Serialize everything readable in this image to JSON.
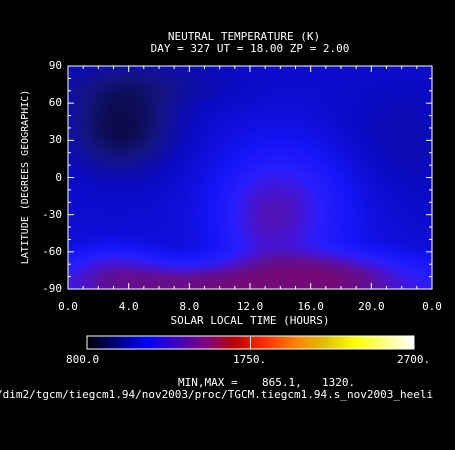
{
  "chart_data": {
    "type": "heatmap",
    "title": "NEUTRAL TEMPERATURE (K)",
    "subtitle": "DAY = 327  UT = 18.00  ZP =    2.00",
    "xlabel": "SOLAR LOCAL TIME (HOURS)",
    "ylabel": "LATITUDE (DEGREES GEOGRAPHIC)",
    "x_ticks": [
      "0.0",
      "4.0",
      "8.0",
      "12.0",
      "16.0",
      "20.0",
      "0.0"
    ],
    "y_ticks": [
      "90",
      "60",
      "30",
      "0",
      "-30",
      "-60",
      "-90"
    ],
    "xlim": [
      0,
      24
    ],
    "ylim": [
      -90,
      90
    ],
    "grid": false,
    "colorbar": {
      "min_label": "800.0",
      "mid_label": "1750.",
      "max_label": "2700.",
      "range": [
        800,
        2700
      ],
      "colors": [
        "#000000",
        "#000080",
        "#0000ff",
        "#4000c0",
        "#800080",
        "#c00000",
        "#ff3000",
        "#ff8000",
        "#e0c000",
        "#ffff00",
        "#ffff80",
        "#ffffff"
      ]
    },
    "minmax_label": "MIN,MAX =",
    "min_value": "865.1,",
    "max_value": "1320.",
    "data_min": 865.1,
    "data_max": 1320,
    "description_note": "",
    "file_path": "/dim2/tgcm/tiegcm1.94/nov2003/proc/TGCM.tiegcm1.94.s_nov2003_heeli"
  }
}
